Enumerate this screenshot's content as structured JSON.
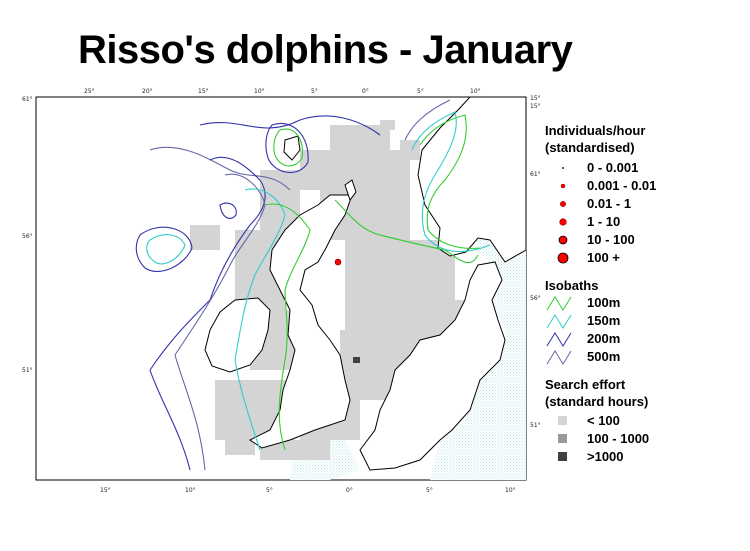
{
  "title": "Risso's dolphins - January",
  "map": {
    "top_longitude_ticks": [
      "25°",
      "20°",
      "15°",
      "10°",
      "5°",
      "0°",
      "5°",
      "10°"
    ],
    "bottom_longitude_ticks": [
      "15°",
      "10°",
      "5°",
      "0°",
      "5°",
      "10°"
    ],
    "left_latitude_ticks": [
      "61°",
      "56°",
      "51°"
    ],
    "right_latitude_ticks": [
      "61°",
      "56°",
      "51°"
    ],
    "right_top_ticks": [
      "15°",
      "15°"
    ],
    "colors": {
      "sea_hatch": "#cfeff0",
      "effort_low": "#d4d4d4",
      "effort_mid": "#9a9a9a",
      "effort_high": "#404040",
      "isobath_100m": "#33cc33",
      "isobath_150m": "#33cccc",
      "isobath_200m": "#3333aa",
      "isobath_500m": "#6666aa",
      "sighting": "#ff0000"
    }
  },
  "legend": {
    "individuals": {
      "header_line1": "Individuals/hour",
      "header_line2": "(standardised)",
      "items": [
        {
          "label": "0 - 0.001",
          "radius": 1
        },
        {
          "label": "0.001 - 0.01",
          "radius": 2
        },
        {
          "label": "0.01 - 1",
          "radius": 3
        },
        {
          "label": "1 - 10",
          "radius": 4
        },
        {
          "label": "10 - 100",
          "radius": 5
        },
        {
          "label": "100 +",
          "radius": 6
        }
      ]
    },
    "isobaths": {
      "header": "Isobaths",
      "items": [
        {
          "label": "100m",
          "color": "#33cc33"
        },
        {
          "label": "150m",
          "color": "#33cccc"
        },
        {
          "label": "200m",
          "color": "#3333aa"
        },
        {
          "label": "500m",
          "color": "#6666aa"
        }
      ]
    },
    "effort": {
      "header_line1": "Search effort",
      "header_line2": "(standard hours)",
      "items": [
        {
          "label": "< 100",
          "color": "#d4d4d4"
        },
        {
          "label": "100 - 1000",
          "color": "#9a9a9a"
        },
        {
          "label": ">1000",
          "color": "#404040"
        }
      ]
    }
  }
}
